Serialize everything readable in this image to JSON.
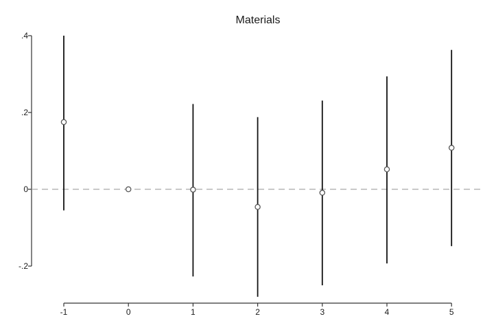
{
  "chart_data": {
    "type": "scatter",
    "subtype": "coefficient-plot-with-confidence-intervals",
    "title": "Materials",
    "xlabel": "",
    "ylabel": "",
    "x": [
      -1,
      0,
      1,
      2,
      3,
      4,
      5
    ],
    "x_tick_labels": [
      "-1",
      "0",
      "1",
      "2",
      "3",
      "4",
      "5"
    ],
    "y_ticks": [
      -0.2,
      0,
      0.2,
      0.4
    ],
    "y_tick_labels": [
      "-.2",
      "0",
      ".2",
      ".4"
    ],
    "xlim": [
      -1,
      5
    ],
    "ylim": [
      -0.28,
      0.4
    ],
    "series": [
      {
        "estimates": [
          0.175,
          0.0,
          -0.001,
          -0.046,
          -0.009,
          0.052,
          0.108
        ],
        "ci_lower": [
          -0.055,
          0.0,
          -0.227,
          -0.28,
          -0.25,
          -0.193,
          -0.148
        ],
        "ci_upper": [
          0.4,
          0.0,
          0.222,
          0.188,
          0.231,
          0.294,
          0.363
        ]
      }
    ],
    "reference_line": {
      "y": 0,
      "style": "dashed"
    },
    "grid": false,
    "legend": "none",
    "colors": {
      "marker": "#555555",
      "ci_line": "#111111",
      "reference_line": "#a8a8a8",
      "axis": "#333333"
    }
  }
}
